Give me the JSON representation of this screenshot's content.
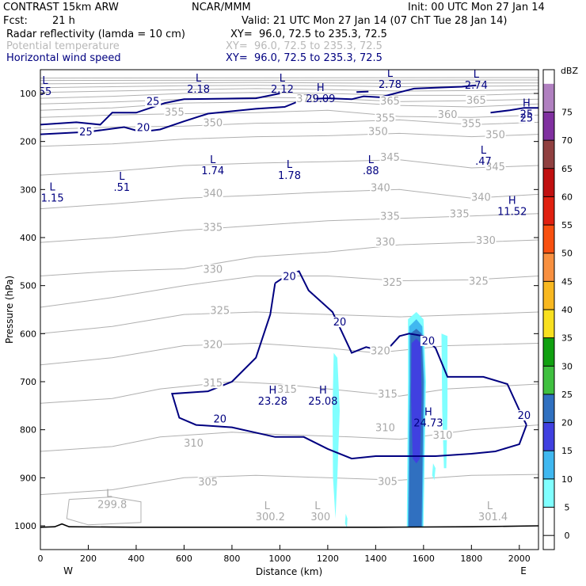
{
  "header": {
    "model": "CONTRAST 15km ARW",
    "center": "NCAR/MMM",
    "init": "Init: 00 UTC Mon 27 Jan 14",
    "fcst_label": "Fcst:",
    "fcst_value": "21 h",
    "valid": "Valid: 21 UTC Mon 27 Jan 14 (07 ChT Tue 28 Jan 14)"
  },
  "fields": [
    {
      "name": "Radar reflectivity (lamda = 10 cm)",
      "xy": "XY=  96.0, 72.5 to 235.3, 72.5",
      "color": "#000000"
    },
    {
      "name": "Potential temperature",
      "xy": "XY=  96.0, 72.5 to 235.3, 72.5",
      "color": "#b8b8b8"
    },
    {
      "name": "Horizontal wind speed",
      "xy": "XY=  96.0, 72.5 to 235.3, 72.5",
      "color": "#000080"
    }
  ],
  "chart_data": {
    "type": "cross-section",
    "ylabel": "Pressure (hPa)",
    "xlabel": "Distance (km)",
    "xlim": [
      0,
      2080
    ],
    "ylim": [
      1050,
      65
    ],
    "xticks": [
      0,
      200,
      400,
      600,
      800,
      1000,
      1200,
      1400,
      1600,
      1800,
      2000
    ],
    "yticks": [
      100,
      200,
      300,
      400,
      500,
      600,
      700,
      800,
      900,
      1000
    ],
    "x_end_labels": {
      "left": "W",
      "right": "E"
    },
    "colorbar": {
      "unit": "dBZ",
      "levels": [
        0,
        5,
        10,
        15,
        20,
        25,
        30,
        35,
        40,
        45,
        50,
        55,
        60,
        65,
        70,
        75
      ],
      "colors": [
        "#ffffff",
        "#80ffff",
        "#40b8f0",
        "#4040e0",
        "#3070c0",
        "#40c040",
        "#10a010",
        "#f8e020",
        "#f8b820",
        "#f89040",
        "#f85010",
        "#e02010",
        "#c01010",
        "#904040",
        "#8030a0",
        "#b080c0"
      ]
    },
    "theta_labels": [
      {
        "x": 1460,
        "p": 120,
        "text": "365"
      },
      {
        "x": 1820,
        "p": 118,
        "text": "365"
      },
      {
        "x": 1110,
        "p": 115,
        "text": "370"
      },
      {
        "x": 1700,
        "p": 148,
        "text": "360"
      },
      {
        "x": 560,
        "p": 143,
        "text": "355"
      },
      {
        "x": 1440,
        "p": 155,
        "text": "355"
      },
      {
        "x": 1800,
        "p": 167,
        "text": "355"
      },
      {
        "x": 720,
        "p": 165,
        "text": "350"
      },
      {
        "x": 1410,
        "p": 183,
        "text": "350"
      },
      {
        "x": 1900,
        "p": 190,
        "text": "350"
      },
      {
        "x": 1460,
        "p": 237,
        "text": "345"
      },
      {
        "x": 1900,
        "p": 257,
        "text": "345"
      },
      {
        "x": 720,
        "p": 312,
        "text": "340"
      },
      {
        "x": 1420,
        "p": 300,
        "text": "340"
      },
      {
        "x": 1840,
        "p": 320,
        "text": "340"
      },
      {
        "x": 1460,
        "p": 360,
        "text": "335"
      },
      {
        "x": 1750,
        "p": 355,
        "text": "335"
      },
      {
        "x": 720,
        "p": 383,
        "text": "335"
      },
      {
        "x": 1440,
        "p": 413,
        "text": "330"
      },
      {
        "x": 1860,
        "p": 410,
        "text": "330"
      },
      {
        "x": 720,
        "p": 470,
        "text": "330"
      },
      {
        "x": 1470,
        "p": 497,
        "text": "325"
      },
      {
        "x": 1830,
        "p": 495,
        "text": "325"
      },
      {
        "x": 750,
        "p": 556,
        "text": "325"
      },
      {
        "x": 720,
        "p": 627,
        "text": "320"
      },
      {
        "x": 1420,
        "p": 640,
        "text": "320"
      },
      {
        "x": 720,
        "p": 707,
        "text": "315"
      },
      {
        "x": 1030,
        "p": 720,
        "text": "315"
      },
      {
        "x": 1450,
        "p": 730,
        "text": "315"
      },
      {
        "x": 640,
        "p": 832,
        "text": "310"
      },
      {
        "x": 1440,
        "p": 800,
        "text": "310"
      },
      {
        "x": 1680,
        "p": 815,
        "text": "310"
      },
      {
        "x": 700,
        "p": 913,
        "text": "305"
      },
      {
        "x": 1450,
        "p": 912,
        "text": "305"
      }
    ],
    "wind_labels": [
      {
        "x": 470,
        "p": 121,
        "text": "25"
      },
      {
        "x": 190,
        "p": 184,
        "text": "25"
      },
      {
        "x": 430,
        "p": 175,
        "text": "20"
      },
      {
        "x": 2030,
        "p": 155,
        "text": "25"
      },
      {
        "x": 1040,
        "p": 485,
        "text": "20"
      },
      {
        "x": 1250,
        "p": 580,
        "text": "20"
      },
      {
        "x": 1620,
        "p": 619,
        "text": "20"
      },
      {
        "x": 750,
        "p": 782,
        "text": "20"
      },
      {
        "x": 2020,
        "p": 774,
        "text": "20"
      }
    ],
    "extrema": [
      {
        "x": 20,
        "p": 80,
        "type": "L",
        "value": "55"
      },
      {
        "x": 660,
        "p": 75,
        "type": "L",
        "value": "2.18"
      },
      {
        "x": 1010,
        "p": 75,
        "type": "L",
        "value": "2.12"
      },
      {
        "x": 1170,
        "p": 95,
        "type": "H",
        "value": "29.09"
      },
      {
        "x": 1460,
        "p": 65,
        "type": "L",
        "value": "2.78"
      },
      {
        "x": 1820,
        "p": 67,
        "type": "L",
        "value": "2.74"
      },
      {
        "x": 2030,
        "p": 127,
        "type": "H",
        "value": "25"
      },
      {
        "x": 720,
        "p": 245,
        "type": "L",
        "value": "1.74"
      },
      {
        "x": 1040,
        "p": 255,
        "type": "L",
        "value": "1.78"
      },
      {
        "x": 1380,
        "p": 245,
        "type": "L",
        "value": ".88"
      },
      {
        "x": 1850,
        "p": 225,
        "type": "L",
        "value": ".47"
      },
      {
        "x": 340,
        "p": 280,
        "type": "L",
        "value": ".51"
      },
      {
        "x": 50,
        "p": 302,
        "type": "L",
        "value": "1.15"
      },
      {
        "x": 1970,
        "p": 330,
        "type": "H",
        "value": "11.52"
      },
      {
        "x": 970,
        "p": 725,
        "type": "H",
        "value": "23.28"
      },
      {
        "x": 1180,
        "p": 725,
        "type": "H",
        "value": "25.08"
      },
      {
        "x": 1620,
        "p": 770,
        "type": "H",
        "value": "24.73"
      }
    ],
    "surface_labels": [
      {
        "x": 300,
        "p": 960,
        "text": "299.8"
      },
      {
        "x": 960,
        "p": 985,
        "text": "300.2"
      },
      {
        "x": 1170,
        "p": 985,
        "text": "300"
      },
      {
        "x": 1890,
        "p": 985,
        "text": "301.4"
      }
    ]
  }
}
